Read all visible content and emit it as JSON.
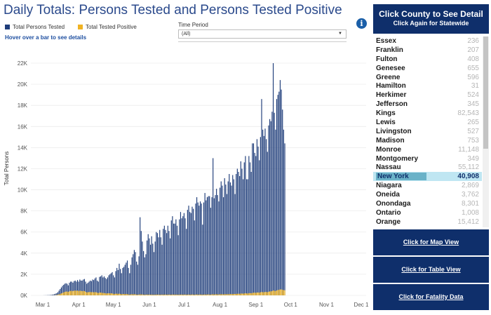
{
  "title": "Daily Totals: Persons Tested and Persons Tested Positive",
  "legend": {
    "tested_label": "Total Persons Tested",
    "positive_label": "Total Tested Positive",
    "tested_color": "#1f3d7a",
    "positive_color": "#f0b323"
  },
  "hover_note": "Hover over a bar to see details",
  "time_period": {
    "label": "Time Period",
    "value": "(All)"
  },
  "panel": {
    "header_line1": "Click County to See Detail",
    "header_line2": "Click Again for Statewide",
    "counties": [
      {
        "name": "Essex",
        "value": "236"
      },
      {
        "name": "Franklin",
        "value": "207"
      },
      {
        "name": "Fulton",
        "value": "408"
      },
      {
        "name": "Genesee",
        "value": "655"
      },
      {
        "name": "Greene",
        "value": "596"
      },
      {
        "name": "Hamilton",
        "value": "31"
      },
      {
        "name": "Herkimer",
        "value": "524"
      },
      {
        "name": "Jefferson",
        "value": "345"
      },
      {
        "name": "Kings",
        "value": "82,543"
      },
      {
        "name": "Lewis",
        "value": "265"
      },
      {
        "name": "Livingston",
        "value": "527"
      },
      {
        "name": "Madison",
        "value": "753"
      },
      {
        "name": "Monroe",
        "value": "11,148"
      },
      {
        "name": "Montgomery",
        "value": "349"
      },
      {
        "name": "Nassau",
        "value": "55,112"
      },
      {
        "name": "New York",
        "value": "40,908",
        "selected": true
      },
      {
        "name": "Niagara",
        "value": "2,869"
      },
      {
        "name": "Oneida",
        "value": "3,762"
      },
      {
        "name": "Onondaga",
        "value": "8,301"
      },
      {
        "name": "Ontario",
        "value": "1,008"
      },
      {
        "name": "Orange",
        "value": "15,412"
      }
    ],
    "buttons": [
      "Click for Map View",
      "Click for Table View",
      "Click for Fatality Data"
    ]
  },
  "chart_data": {
    "type": "bar",
    "ylabel": "Total Persons",
    "ylim": [
      0,
      22800
    ],
    "yticks": [
      0,
      2000,
      4000,
      6000,
      8000,
      10000,
      12000,
      14000,
      16000,
      18000,
      20000,
      22000
    ],
    "ytick_labels": [
      "0K",
      "2K",
      "4K",
      "6K",
      "8K",
      "10K",
      "12K",
      "14K",
      "16K",
      "18K",
      "20K",
      "22K"
    ],
    "x_tick_labels": [
      "Mar 1",
      "Apr 1",
      "May 1",
      "Jun 1",
      "Jul 1",
      "Aug 1",
      "Sep 1",
      "Oct 1",
      "Nov 1",
      "Dec 1"
    ],
    "x_tick_dates": [
      "2020-03-01",
      "2020-04-01",
      "2020-05-01",
      "2020-06-01",
      "2020-07-01",
      "2020-08-01",
      "2020-09-01",
      "2020-10-01",
      "2020-11-01",
      "2020-12-01"
    ],
    "first_date": "2020-03-02",
    "series": [
      {
        "name": "Total Persons Tested",
        "values": [
          5,
          8,
          12,
          18,
          22,
          30,
          40,
          55,
          80,
          110,
          160,
          200,
          300,
          450,
          600,
          750,
          900,
          1000,
          1100,
          1150,
          1100,
          950,
          1200,
          1300,
          1300,
          1200,
          1350,
          1400,
          1300,
          1450,
          1300,
          1500,
          1400,
          1400,
          1500,
          1550,
          1300,
          1100,
          1200,
          1300,
          1400,
          1350,
          1500,
          1450,
          1600,
          1700,
          1400,
          1300,
          1750,
          1800,
          1900,
          1700,
          1800,
          1650,
          1550,
          1700,
          1900,
          2000,
          2100,
          2200,
          1900,
          1700,
          2300,
          2600,
          2400,
          3000,
          2500,
          2100,
          2600,
          2700,
          2900,
          3100,
          3300,
          2600,
          2100,
          2900,
          3600,
          3900,
          4300,
          4100,
          3200,
          2900,
          3700,
          7400,
          6100,
          5100,
          4200,
          3600,
          3900,
          5200,
          5800,
          5400,
          4800,
          5600,
          4900,
          4100,
          5100,
          6000,
          5900,
          5500,
          6200,
          5500,
          4800,
          6300,
          6600,
          6200,
          5900,
          6600,
          6100,
          5400,
          7100,
          7500,
          6800,
          6800,
          7200,
          6600,
          5700,
          7200,
          7900,
          7300,
          7500,
          7800,
          7300,
          6300,
          8100,
          8500,
          7900,
          7800,
          8400,
          8200,
          7100,
          8700,
          9300,
          8800,
          8500,
          8900,
          8700,
          6700,
          8800,
          9700,
          9000,
          9300,
          9400,
          9400,
          8300,
          9300,
          13000,
          9200,
          9500,
          10100,
          9500,
          8900,
          10200,
          10800,
          10400,
          9300,
          11100,
          10500,
          9600,
          10800,
          11500,
          10700,
          10400,
          11400,
          11000,
          9600,
          11500,
          12000,
          11700,
          11300,
          12700,
          12000,
          11000,
          12600,
          13200,
          11000,
          11000,
          13200,
          12600,
          11700,
          14400,
          14400,
          13500,
          13200,
          14800,
          14100,
          12800,
          15000,
          18600,
          15700,
          15100,
          15800,
          14800,
          13600,
          16100,
          16700,
          16500,
          17400,
          22000,
          17300,
          15700,
          18600,
          19000,
          19300,
          20400,
          19500,
          17600,
          15700,
          14400
        ]
      },
      {
        "name": "Total Tested Positive",
        "values": [
          0,
          0,
          0,
          0,
          0,
          0,
          2,
          4,
          6,
          10,
          20,
          40,
          60,
          90,
          130,
          180,
          230,
          280,
          320,
          360,
          360,
          330,
          390,
          420,
          430,
          400,
          440,
          460,
          420,
          460,
          400,
          450,
          420,
          400,
          420,
          410,
          340,
          280,
          300,
          310,
          320,
          300,
          310,
          290,
          300,
          300,
          250,
          220,
          270,
          260,
          250,
          220,
          220,
          200,
          180,
          190,
          200,
          190,
          190,
          180,
          150,
          130,
          160,
          160,
          140,
          160,
          130,
          110,
          120,
          120,
          120,
          120,
          110,
          90,
          70,
          90,
          100,
          100,
          100,
          90,
          70,
          60,
          70,
          100,
          90,
          80,
          70,
          60,
          60,
          70,
          70,
          70,
          60,
          70,
          60,
          50,
          60,
          70,
          70,
          60,
          70,
          60,
          60,
          70,
          70,
          70,
          60,
          70,
          70,
          60,
          70,
          70,
          70,
          70,
          70,
          60,
          60,
          70,
          70,
          70,
          70,
          70,
          70,
          60,
          70,
          70,
          70,
          70,
          80,
          70,
          60,
          70,
          80,
          70,
          70,
          80,
          70,
          60,
          70,
          80,
          70,
          80,
          80,
          80,
          70,
          80,
          110,
          80,
          90,
          100,
          90,
          80,
          100,
          110,
          100,
          90,
          110,
          110,
          100,
          110,
          120,
          120,
          110,
          130,
          130,
          120,
          140,
          150,
          150,
          150,
          170,
          170,
          160,
          180,
          200,
          180,
          180,
          210,
          210,
          200,
          230,
          250,
          250,
          240,
          270,
          270,
          260,
          290,
          320,
          300,
          300,
          320,
          320,
          300,
          340,
          370,
          380,
          400,
          470,
          430,
          410,
          470,
          500,
          530,
          560,
          560,
          530,
          500,
          480
        ]
      }
    ]
  }
}
